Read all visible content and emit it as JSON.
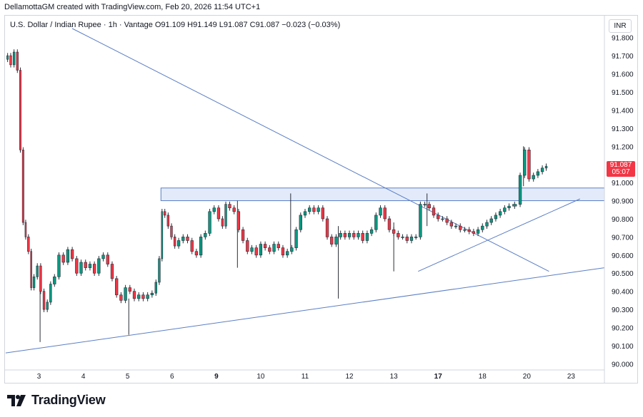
{
  "header": {
    "text": "DellamottaGM created with TradingView.com, Feb 20, 2026 11:54 UTC+1"
  },
  "symbol": {
    "name": "U.S. Dollar / Indian Rupee",
    "interval": "1h",
    "source": "Vantage",
    "open": "O91.109",
    "high": "H91.149",
    "low": "L91.087",
    "close": "C91.087",
    "change": "−0.023 (−0.03%)"
  },
  "currency": "INR",
  "price_tag": {
    "price": "91.087",
    "countdown": "05:07"
  },
  "brand": {
    "logo_text": "TradingView"
  },
  "colors": {
    "up": "#089981",
    "down": "#f23645",
    "line": "#5b7ec5",
    "zone": "#e3ebfa",
    "axis_text": "#131722"
  },
  "chart_data": {
    "type": "candlestick",
    "y_ticks": [
      "91.800",
      "91.700",
      "91.600",
      "91.500",
      "91.400",
      "91.300",
      "91.200",
      "91.100",
      "91.000",
      "90.900",
      "90.800",
      "90.700",
      "90.600",
      "90.500",
      "90.400",
      "90.300",
      "90.200",
      "90.100",
      "90.000"
    ],
    "ylim": [
      89.97,
      91.85
    ],
    "x_ticks": [
      {
        "label": "3",
        "pos": 2.5,
        "bold": false
      },
      {
        "label": "4",
        "pos": 4.5,
        "bold": false
      },
      {
        "label": "5",
        "pos": 6.5,
        "bold": false
      },
      {
        "label": "6",
        "pos": 8.5,
        "bold": false
      },
      {
        "label": "9",
        "pos": 10.5,
        "bold": true
      },
      {
        "label": "10",
        "pos": 12.5,
        "bold": false
      },
      {
        "label": "11",
        "pos": 14.5,
        "bold": false
      },
      {
        "label": "12",
        "pos": 16.5,
        "bold": false
      },
      {
        "label": "13",
        "pos": 18.5,
        "bold": false
      },
      {
        "label": "17",
        "pos": 20.5,
        "bold": true
      },
      {
        "label": "18",
        "pos": 22.5,
        "bold": false
      },
      {
        "label": "20",
        "pos": 24.5,
        "bold": false
      },
      {
        "label": "23",
        "pos": 26.5,
        "bold": false
      }
    ],
    "x_range": [
      1.0,
      28.0
    ],
    "price_path": [
      [
        1.02,
        91.68
      ],
      [
        1.15,
        91.7
      ],
      [
        1.3,
        91.65
      ],
      [
        1.45,
        91.72
      ],
      [
        1.6,
        91.62
      ],
      [
        1.72,
        91.18
      ],
      [
        1.85,
        90.78
      ],
      [
        1.95,
        90.7
      ],
      [
        2.1,
        90.62
      ],
      [
        2.2,
        90.42
      ],
      [
        2.35,
        90.48
      ],
      [
        2.5,
        90.54
      ],
      [
        2.65,
        90.4
      ],
      [
        2.8,
        90.3
      ],
      [
        2.95,
        90.34
      ],
      [
        3.1,
        90.44
      ],
      [
        3.3,
        90.48
      ],
      [
        3.5,
        90.6
      ],
      [
        3.7,
        90.56
      ],
      [
        3.9,
        90.63
      ],
      [
        4.1,
        90.58
      ],
      [
        4.3,
        90.5
      ],
      [
        4.5,
        90.56
      ],
      [
        4.7,
        90.53
      ],
      [
        4.9,
        90.55
      ],
      [
        5.1,
        90.5
      ],
      [
        5.3,
        90.58
      ],
      [
        5.5,
        90.6
      ],
      [
        5.7,
        90.55
      ],
      [
        5.9,
        90.47
      ],
      [
        6.1,
        90.38
      ],
      [
        6.3,
        90.35
      ],
      [
        6.5,
        90.42
      ],
      [
        6.7,
        90.4
      ],
      [
        6.9,
        90.36
      ],
      [
        7.1,
        90.38
      ],
      [
        7.3,
        90.36
      ],
      [
        7.5,
        90.38
      ],
      [
        7.7,
        90.39
      ],
      [
        7.85,
        90.45
      ],
      [
        8.0,
        90.58
      ],
      [
        8.1,
        90.84
      ],
      [
        8.25,
        90.82
      ],
      [
        8.4,
        90.76
      ],
      [
        8.55,
        90.7
      ],
      [
        8.7,
        90.65
      ],
      [
        8.9,
        90.68
      ],
      [
        9.1,
        90.7
      ],
      [
        9.3,
        90.68
      ],
      [
        9.5,
        90.62
      ],
      [
        9.7,
        90.6
      ],
      [
        9.9,
        90.7
      ],
      [
        10.1,
        90.72
      ],
      [
        10.3,
        90.84
      ],
      [
        10.5,
        90.86
      ],
      [
        10.7,
        90.8
      ],
      [
        10.85,
        90.76
      ],
      [
        11.0,
        90.88
      ],
      [
        11.2,
        90.86
      ],
      [
        11.4,
        90.84
      ],
      [
        11.6,
        90.74
      ],
      [
        11.8,
        90.68
      ],
      [
        12.0,
        90.62
      ],
      [
        12.2,
        90.64
      ],
      [
        12.4,
        90.6
      ],
      [
        12.6,
        90.66
      ],
      [
        12.8,
        90.64
      ],
      [
        13.0,
        90.62
      ],
      [
        13.2,
        90.66
      ],
      [
        13.4,
        90.64
      ],
      [
        13.6,
        90.6
      ],
      [
        13.8,
        90.62
      ],
      [
        14.0,
        90.64
      ],
      [
        14.2,
        90.74
      ],
      [
        14.4,
        90.82
      ],
      [
        14.6,
        90.84
      ],
      [
        14.8,
        90.86
      ],
      [
        15.0,
        90.84
      ],
      [
        15.2,
        90.86
      ],
      [
        15.4,
        90.8
      ],
      [
        15.6,
        90.7
      ],
      [
        15.8,
        90.66
      ],
      [
        16.0,
        90.7
      ],
      [
        16.2,
        90.72
      ],
      [
        16.4,
        90.7
      ],
      [
        16.6,
        90.72
      ],
      [
        16.8,
        90.7
      ],
      [
        17.0,
        90.72
      ],
      [
        17.2,
        90.68
      ],
      [
        17.4,
        90.72
      ],
      [
        17.6,
        90.74
      ],
      [
        17.8,
        90.82
      ],
      [
        18.0,
        90.86
      ],
      [
        18.2,
        90.8
      ],
      [
        18.4,
        90.74
      ],
      [
        18.6,
        90.72
      ],
      [
        18.8,
        90.7
      ],
      [
        19.0,
        90.7
      ],
      [
        19.2,
        90.68
      ],
      [
        19.4,
        90.7
      ],
      [
        19.6,
        90.7
      ],
      [
        19.8,
        90.88
      ],
      [
        20.0,
        90.88
      ],
      [
        20.2,
        90.86
      ],
      [
        20.4,
        90.82
      ],
      [
        20.6,
        90.8
      ],
      [
        20.8,
        90.8
      ],
      [
        21.0,
        90.78
      ],
      [
        21.2,
        90.76
      ],
      [
        21.4,
        90.76
      ],
      [
        21.6,
        90.74
      ],
      [
        21.8,
        90.74
      ],
      [
        22.0,
        90.73
      ],
      [
        22.2,
        90.72
      ],
      [
        22.4,
        90.74
      ],
      [
        22.6,
        90.76
      ],
      [
        22.8,
        90.78
      ],
      [
        23.0,
        90.8
      ],
      [
        23.2,
        90.82
      ],
      [
        23.4,
        90.84
      ],
      [
        23.6,
        90.86
      ],
      [
        23.8,
        90.87
      ],
      [
        24.1,
        90.88
      ],
      [
        24.3,
        91.04
      ],
      [
        24.5,
        91.18
      ],
      [
        24.7,
        91.02
      ],
      [
        24.9,
        91.04
      ],
      [
        25.1,
        91.06
      ],
      [
        25.3,
        91.08
      ],
      [
        25.45,
        91.09
      ]
    ],
    "wicks": [
      {
        "x": 2.55,
        "high": 90.46,
        "low": 90.12
      },
      {
        "x": 6.55,
        "high": 90.36,
        "low": 90.16
      },
      {
        "x": 11.45,
        "high": 90.9,
        "low": 90.53
      },
      {
        "x": 13.85,
        "high": 90.94,
        "low": 90.62
      },
      {
        "x": 16.0,
        "high": 90.76,
        "low": 90.36
      },
      {
        "x": 18.5,
        "high": 90.78,
        "low": 90.51
      },
      {
        "x": 20.0,
        "high": 90.94,
        "low": 90.76
      },
      {
        "x": 24.35,
        "high": 91.2,
        "low": 90.98
      }
    ],
    "resistance_zone": {
      "x_start": 8.0,
      "x_end": 28.0,
      "y_top": 90.97,
      "y_bottom": 90.9
    },
    "trendlines": [
      {
        "name": "descending-trendline",
        "x1": 4.0,
        "y1": 91.85,
        "x2": 25.5,
        "y2": 90.51
      },
      {
        "name": "long-ascending-support",
        "x1": 1.0,
        "y1": 90.06,
        "x2": 28.0,
        "y2": 90.53
      },
      {
        "name": "short-ascending-support",
        "x1": 19.6,
        "y1": 90.51,
        "x2": 26.9,
        "y2": 90.91
      }
    ]
  }
}
